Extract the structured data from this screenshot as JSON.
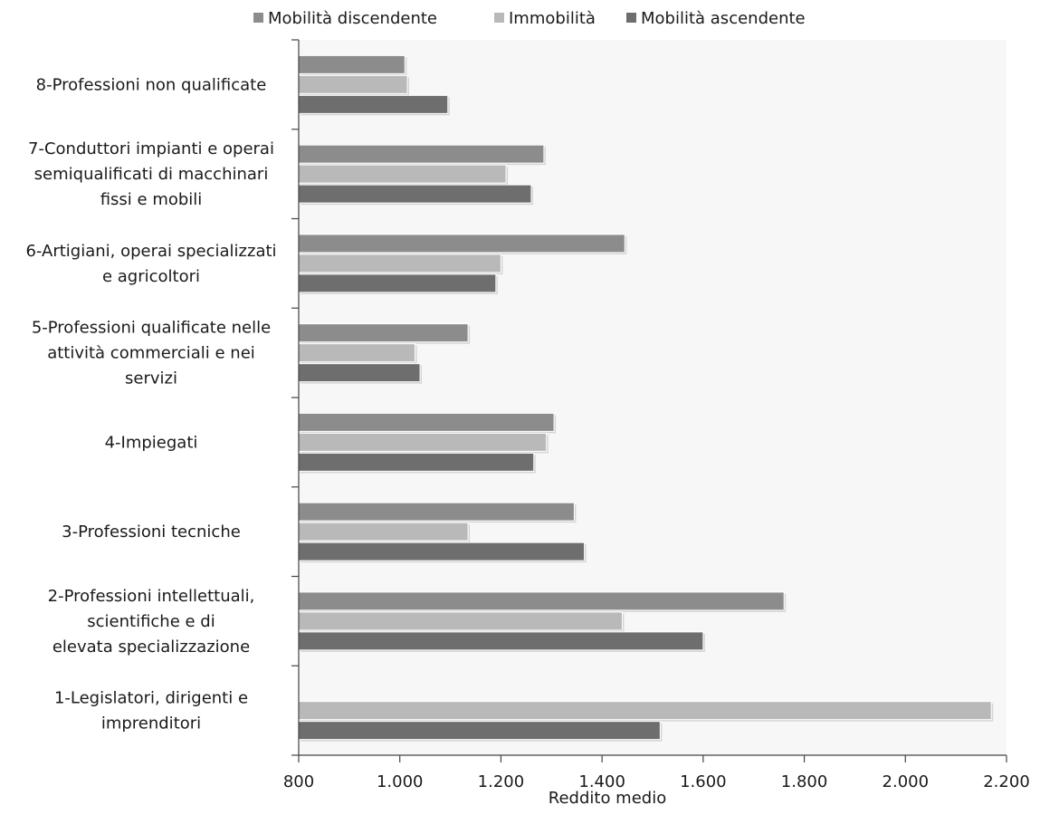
{
  "chart_data": {
    "type": "bar",
    "orientation": "horizontal",
    "categories": [
      "1-Legislatori, dirigenti e imprenditori",
      "2-Professioni intellettuali, scientifiche e di elevata specializzazione",
      "3-Professioni tecniche",
      "4-Impiegati",
      "5-Professioni qualificate nelle attività commerciali e nei servizi",
      "6-Artigiani, operai specializzati e agricoltori",
      "7-Conduttori impianti e operai semiqualificati di macchinari fissi e mobili",
      "8-Professioni non qualificate"
    ],
    "category_label_lines": [
      [
        "1-Legislatori, dirigenti e",
        "imprenditori"
      ],
      [
        "2-Professioni intellettuali,",
        "scientifiche e di",
        "elevata specializzazione"
      ],
      [
        "3-Professioni tecniche"
      ],
      [
        "4-Impiegati"
      ],
      [
        "5-Professioni qualificate nelle",
        "attività commerciali e nei",
        "servizi"
      ],
      [
        "6-Artigiani, operai specializzati",
        "e agricoltori"
      ],
      [
        "7-Conduttori impianti e operai",
        "semiqualificati di macchinari",
        "fissi e mobili"
      ],
      [
        "8-Professioni non qualificate"
      ]
    ],
    "series": [
      {
        "name": "Mobilità discendente",
        "color": "#8c8c8c",
        "values": [
          null,
          1760,
          1345,
          1305,
          1135,
          1445,
          1285,
          1010
        ]
      },
      {
        "name": "Immobilità",
        "color": "#b9b9b9",
        "values": [
          2170,
          1440,
          1135,
          1290,
          1030,
          1200,
          1210,
          1015
        ]
      },
      {
        "name": "Mobilità ascendente",
        "color": "#6e6e6e",
        "values": [
          1515,
          1600,
          1365,
          1265,
          1040,
          1190,
          1260,
          1095
        ]
      }
    ],
    "xlabel": "Reddito medio",
    "xlim": [
      800,
      2200
    ],
    "xticks": [
      800,
      1000,
      1200,
      1400,
      1600,
      1800,
      2000,
      2200
    ],
    "xtick_labels": [
      "800",
      "1.000",
      "1.200",
      "1.400",
      "1.600",
      "1.800",
      "2.000",
      "2.200"
    ],
    "legend_position": "top",
    "plot_background": "#f7f7f7",
    "grid": false
  }
}
